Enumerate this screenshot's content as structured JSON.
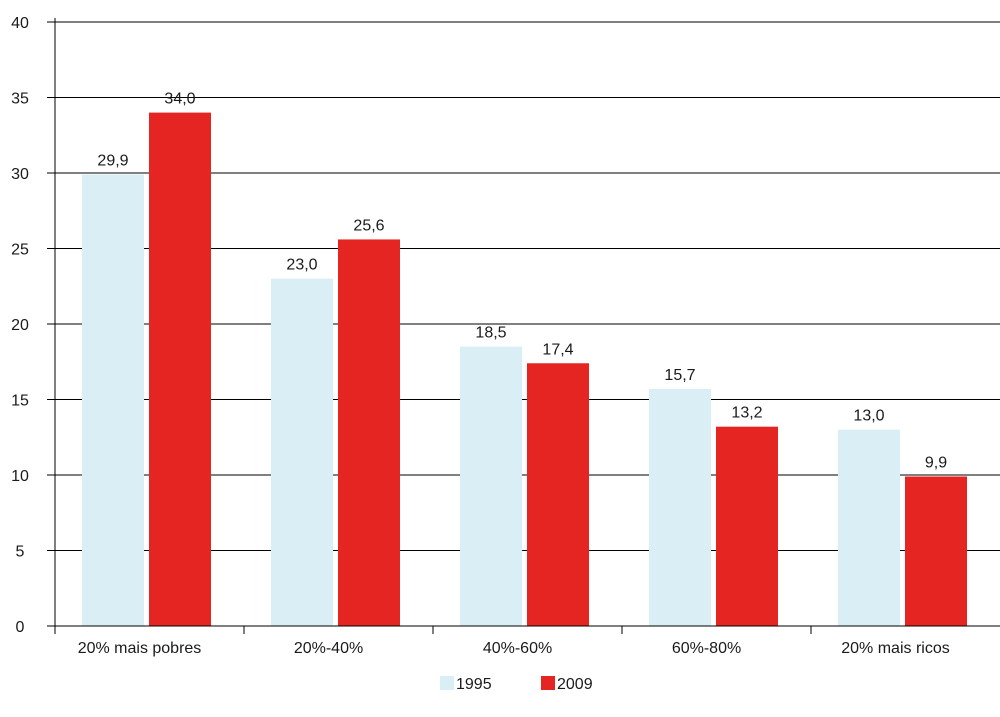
{
  "chart_data": {
    "type": "bar",
    "categories": [
      "20% mais pobres",
      "20%-40%",
      "40%-60%",
      "60%-80%",
      "20% mais ricos"
    ],
    "series": [
      {
        "name": "1995",
        "values": [
          29.9,
          23.0,
          18.5,
          15.7,
          13.0
        ],
        "labels": [
          "29,9",
          "23,0",
          "18,5",
          "15,7",
          "13,0"
        ],
        "color": "#d9eff5"
      },
      {
        "name": "2009",
        "values": [
          34.0,
          25.6,
          17.4,
          13.2,
          9.9
        ],
        "labels": [
          "34,0",
          "25,6",
          "17,4",
          "13,2",
          "9,9"
        ],
        "color": "#e52521"
      }
    ],
    "ylim": [
      0,
      40
    ],
    "yticks": [
      0,
      5,
      10,
      15,
      20,
      25,
      30,
      35,
      40
    ],
    "ytick_labels": [
      "0",
      "5",
      "10",
      "15",
      "20",
      "25",
      "30",
      "35",
      "40"
    ],
    "grid": true,
    "legend": "bottom-center",
    "title": "",
    "xlabel": "",
    "ylabel": ""
  }
}
